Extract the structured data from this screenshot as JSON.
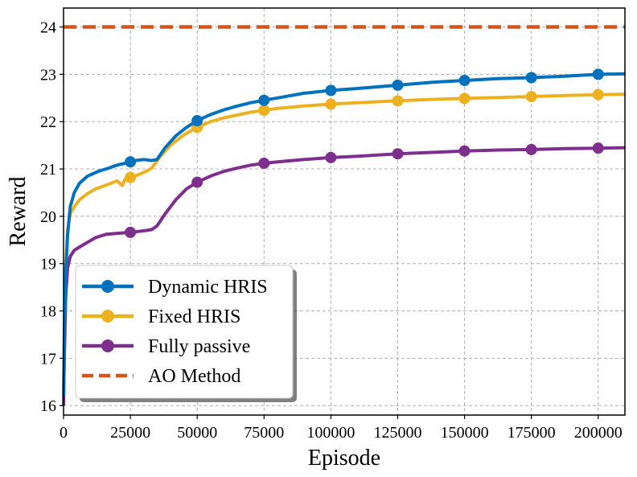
{
  "chart_data": {
    "type": "line",
    "title": "",
    "xlabel": "Episode",
    "ylabel": "Reward",
    "xlim": [
      0,
      210000
    ],
    "ylim": [
      15.8,
      24.4
    ],
    "xticks": [
      0,
      25000,
      50000,
      75000,
      100000,
      125000,
      150000,
      175000,
      200000
    ],
    "xtick_labels": [
      "0",
      "25000",
      "50000",
      "75000",
      "100000",
      "125000",
      "150000",
      "175000",
      "200000"
    ],
    "yticks": [
      16,
      17,
      18,
      19,
      20,
      21,
      22,
      23,
      24
    ],
    "ytick_labels": [
      "16",
      "17",
      "18",
      "19",
      "20",
      "21",
      "22",
      "23",
      "24"
    ],
    "grid": true,
    "legend_position": "bottom-left",
    "series": [
      {
        "name": "Dynamic HRIS",
        "color": "#0072BD",
        "style": "solid",
        "marker": "circle",
        "markers_x": [
          25000,
          50000,
          75000,
          100000,
          125000,
          150000,
          175000,
          200000
        ],
        "x": [
          0,
          300,
          800,
          1500,
          2500,
          4000,
          6000,
          9000,
          13000,
          17000,
          20000,
          23000,
          25000,
          27000,
          30000,
          33000,
          35000,
          38000,
          42000,
          46000,
          50000,
          55000,
          60000,
          65000,
          70000,
          75000,
          80000,
          90000,
          100000,
          110000,
          125000,
          137500,
          150000,
          162500,
          175000,
          187500,
          200000,
          210000
        ],
        "y": [
          16.2,
          17.5,
          18.8,
          19.6,
          20.2,
          20.5,
          20.7,
          20.85,
          20.95,
          21.02,
          21.08,
          21.12,
          21.15,
          21.18,
          21.2,
          21.18,
          21.2,
          21.45,
          21.7,
          21.88,
          22.02,
          22.15,
          22.25,
          22.33,
          22.4,
          22.45,
          22.5,
          22.6,
          22.66,
          22.7,
          22.77,
          22.83,
          22.87,
          22.91,
          22.93,
          22.96,
          23.0,
          23.01
        ]
      },
      {
        "name": "Fixed HRIS",
        "color": "#EDB120",
        "style": "solid",
        "marker": "circle",
        "markers_x": [
          25000,
          50000,
          75000,
          100000,
          125000,
          150000,
          175000,
          200000
        ],
        "x": [
          0,
          300,
          800,
          1500,
          2500,
          4000,
          6000,
          9000,
          12000,
          16000,
          20000,
          22000,
          23000,
          25000,
          28000,
          31000,
          33000,
          36000,
          40000,
          45000,
          50000,
          55000,
          60000,
          65000,
          70000,
          75000,
          80000,
          90000,
          100000,
          110000,
          125000,
          137500,
          150000,
          162500,
          175000,
          187500,
          200000,
          210000
        ],
        "y": [
          16.2,
          17.6,
          18.9,
          19.7,
          20.05,
          20.2,
          20.35,
          20.48,
          20.58,
          20.66,
          20.75,
          20.65,
          20.78,
          20.82,
          20.88,
          20.95,
          21.02,
          21.25,
          21.5,
          21.72,
          21.88,
          22.0,
          22.08,
          22.14,
          22.2,
          22.24,
          22.28,
          22.33,
          22.37,
          22.4,
          22.44,
          22.47,
          22.49,
          22.51,
          22.53,
          22.55,
          22.57,
          22.58
        ]
      },
      {
        "name": "Fully passive",
        "color": "#7E2F8E",
        "style": "solid",
        "marker": "circle",
        "markers_x": [
          50000,
          75000,
          100000,
          125000,
          150000,
          175000,
          200000
        ],
        "x": [
          0,
          300,
          800,
          1500,
          2500,
          4000,
          6000,
          9000,
          12000,
          16000,
          20000,
          25000,
          28000,
          31000,
          33000,
          35000,
          38000,
          42000,
          46000,
          50000,
          55000,
          60000,
          65000,
          70000,
          75000,
          80000,
          90000,
          100000,
          110000,
          125000,
          137500,
          150000,
          162500,
          175000,
          187500,
          200000,
          210000
        ],
        "y": [
          16.0,
          17.0,
          18.3,
          18.9,
          19.15,
          19.28,
          19.35,
          19.45,
          19.55,
          19.62,
          19.64,
          19.66,
          19.68,
          19.7,
          19.72,
          19.8,
          20.05,
          20.35,
          20.58,
          20.72,
          20.85,
          20.95,
          21.02,
          21.08,
          21.12,
          21.15,
          21.2,
          21.24,
          21.27,
          21.32,
          21.35,
          21.38,
          21.4,
          21.41,
          21.43,
          21.44,
          21.45
        ]
      },
      {
        "name": "AO Method",
        "color": "#D95319",
        "style": "dashed",
        "marker": "none",
        "x": [
          0,
          210000
        ],
        "y": [
          24.0,
          24.0
        ]
      }
    ],
    "annotations": [
      {
        "series": "Fully passive",
        "x": 25000,
        "y": 19.66,
        "marker": "circle"
      }
    ]
  }
}
